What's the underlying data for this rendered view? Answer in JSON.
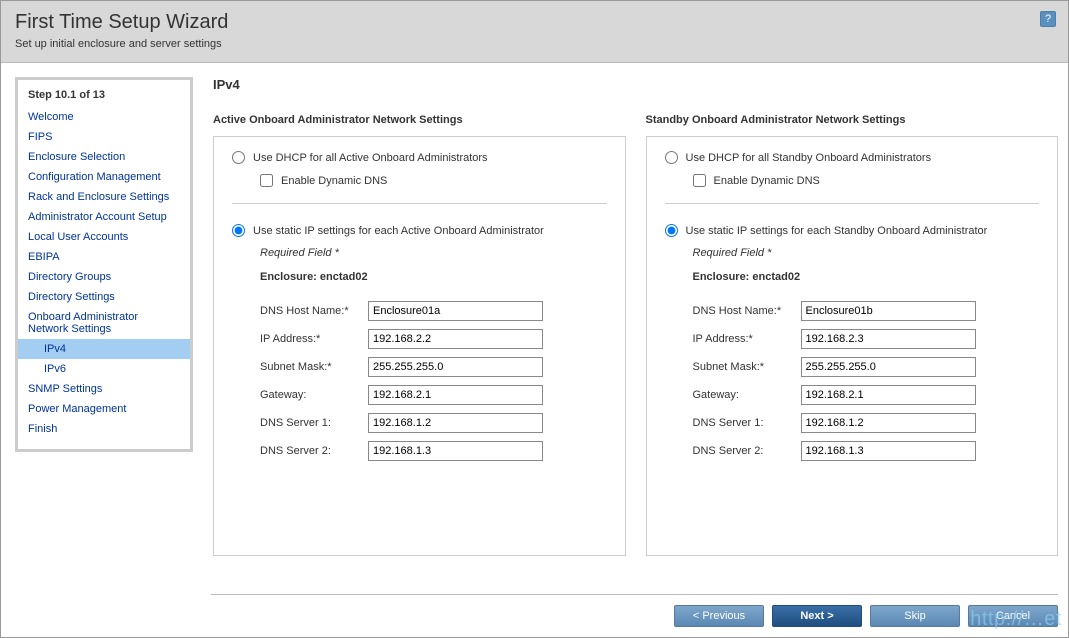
{
  "header": {
    "title": "First Time Setup Wizard",
    "subtitle": "Set up initial enclosure and server settings"
  },
  "sidebar": {
    "step_label": "Step 10.1 of 13",
    "items": [
      {
        "label": "Welcome",
        "sub": false,
        "active": false
      },
      {
        "label": "FIPS",
        "sub": false,
        "active": false
      },
      {
        "label": "Enclosure Selection",
        "sub": false,
        "active": false
      },
      {
        "label": "Configuration Management",
        "sub": false,
        "active": false
      },
      {
        "label": "Rack and Enclosure Settings",
        "sub": false,
        "active": false
      },
      {
        "label": "Administrator Account Setup",
        "sub": false,
        "active": false
      },
      {
        "label": "Local User Accounts",
        "sub": false,
        "active": false
      },
      {
        "label": "EBIPA",
        "sub": false,
        "active": false
      },
      {
        "label": "Directory Groups",
        "sub": false,
        "active": false
      },
      {
        "label": "Directory Settings",
        "sub": false,
        "active": false
      },
      {
        "label": "Onboard Administrator Network Settings",
        "sub": false,
        "active": false
      },
      {
        "label": "IPv4",
        "sub": true,
        "active": true
      },
      {
        "label": "IPv6",
        "sub": true,
        "active": false
      },
      {
        "label": "SNMP Settings",
        "sub": false,
        "active": false
      },
      {
        "label": "Power Management",
        "sub": false,
        "active": false
      },
      {
        "label": "Finish",
        "sub": false,
        "active": false
      }
    ]
  },
  "page": {
    "title": "IPv4",
    "required_label": "Required Field *",
    "active": {
      "panel_title": "Active Onboard Administrator Network Settings",
      "dhcp_label": "Use DHCP for all Active Onboard Administrators",
      "ddns_label": "Enable Dynamic DNS",
      "static_label": "Use static IP settings for each Active Onboard Administrator",
      "enclosure_label": "Enclosure: enctad02",
      "fields": {
        "dns_host": {
          "label": "DNS Host Name:*",
          "value": "Enclosure01a"
        },
        "ip": {
          "label": "IP Address:*",
          "value": "192.168.2.2"
        },
        "mask": {
          "label": "Subnet Mask:*",
          "value": "255.255.255.0"
        },
        "gw": {
          "label": "Gateway:",
          "value": "192.168.2.1"
        },
        "dns1": {
          "label": "DNS Server 1:",
          "value": "192.168.1.2"
        },
        "dns2": {
          "label": "DNS Server 2:",
          "value": "192.168.1.3"
        }
      }
    },
    "standby": {
      "panel_title": "Standby Onboard Administrator Network Settings",
      "dhcp_label": "Use DHCP for all Standby Onboard Administrators",
      "ddns_label": "Enable Dynamic DNS",
      "static_label": "Use static IP settings for each Standby Onboard Administrator",
      "enclosure_label": "Enclosure: enctad02",
      "fields": {
        "dns_host": {
          "label": "DNS Host Name:*",
          "value": "Enclosure01b"
        },
        "ip": {
          "label": "IP Address:*",
          "value": "192.168.2.3"
        },
        "mask": {
          "label": "Subnet Mask:*",
          "value": "255.255.255.0"
        },
        "gw": {
          "label": "Gateway:",
          "value": "192.168.2.1"
        },
        "dns1": {
          "label": "DNS Server 1:",
          "value": "192.168.1.2"
        },
        "dns2": {
          "label": "DNS Server 2:",
          "value": "192.168.1.3"
        }
      }
    }
  },
  "footer": {
    "prev": "< Previous",
    "next": "Next >",
    "skip": "Skip",
    "cancel": "Cancel"
  },
  "watermark": "http://…et"
}
